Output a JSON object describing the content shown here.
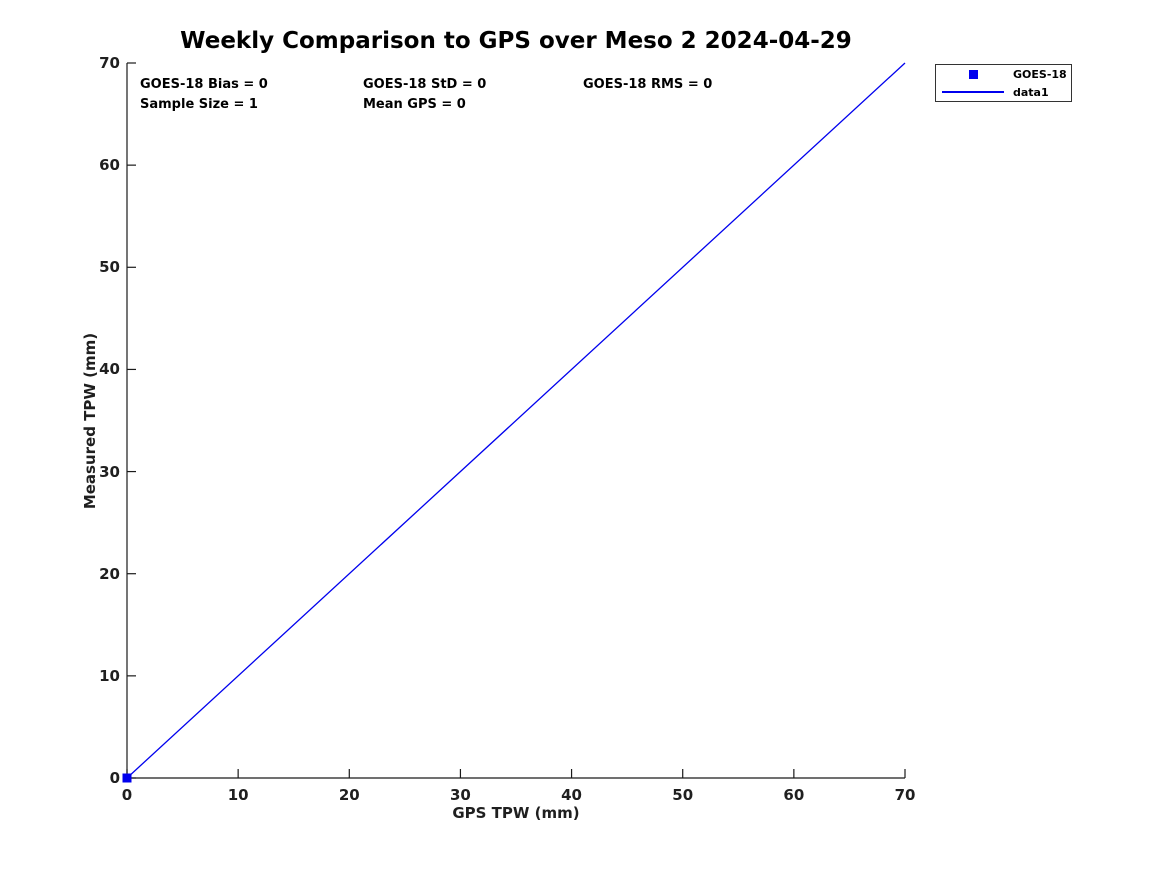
{
  "chart": {
    "title": "Weekly Comparison to GPS over Meso 2 2024-04-29",
    "xlabel": "GPS TPW (mm)",
    "ylabel": "Measured TPW (mm)"
  },
  "annotations": {
    "bias": "GOES-18 Bias = 0",
    "std": "GOES-18 StD = 0",
    "rms": "GOES-18 RMS = 0",
    "sample_size": "Sample Size = 1",
    "mean_gps": "Mean GPS = 0"
  },
  "legend": {
    "entries": [
      {
        "marker": "square",
        "label": "GOES-18"
      },
      {
        "marker": "line",
        "label": "data1"
      }
    ]
  },
  "colors": {
    "series_blue": "#0000EE",
    "axis": "#1a1a1a",
    "tick_text": "#1f1f1f"
  },
  "chart_data": {
    "type": "scatter",
    "title": "Weekly Comparison to GPS over Meso 2 2024-04-29",
    "xlabel": "GPS TPW (mm)",
    "ylabel": "Measured TPW (mm)",
    "xlim": [
      0,
      70
    ],
    "ylim": [
      0,
      70
    ],
    "x_ticks": [
      0,
      10,
      20,
      30,
      40,
      50,
      60,
      70
    ],
    "y_ticks": [
      0,
      10,
      20,
      30,
      40,
      50,
      60,
      70
    ],
    "grid": false,
    "legend_position": "outside-top-right",
    "series": [
      {
        "name": "GOES-18",
        "type": "scatter",
        "marker": "square",
        "color": "#0000EE",
        "points": [
          [
            0,
            0
          ]
        ]
      },
      {
        "name": "data1",
        "type": "line",
        "color": "#0000EE",
        "points": [
          [
            0,
            0
          ],
          [
            70,
            70
          ]
        ]
      }
    ],
    "stats": {
      "goes18_bias": 0,
      "goes18_std": 0,
      "goes18_rms": 0,
      "sample_size": 1,
      "mean_gps": 0
    }
  }
}
